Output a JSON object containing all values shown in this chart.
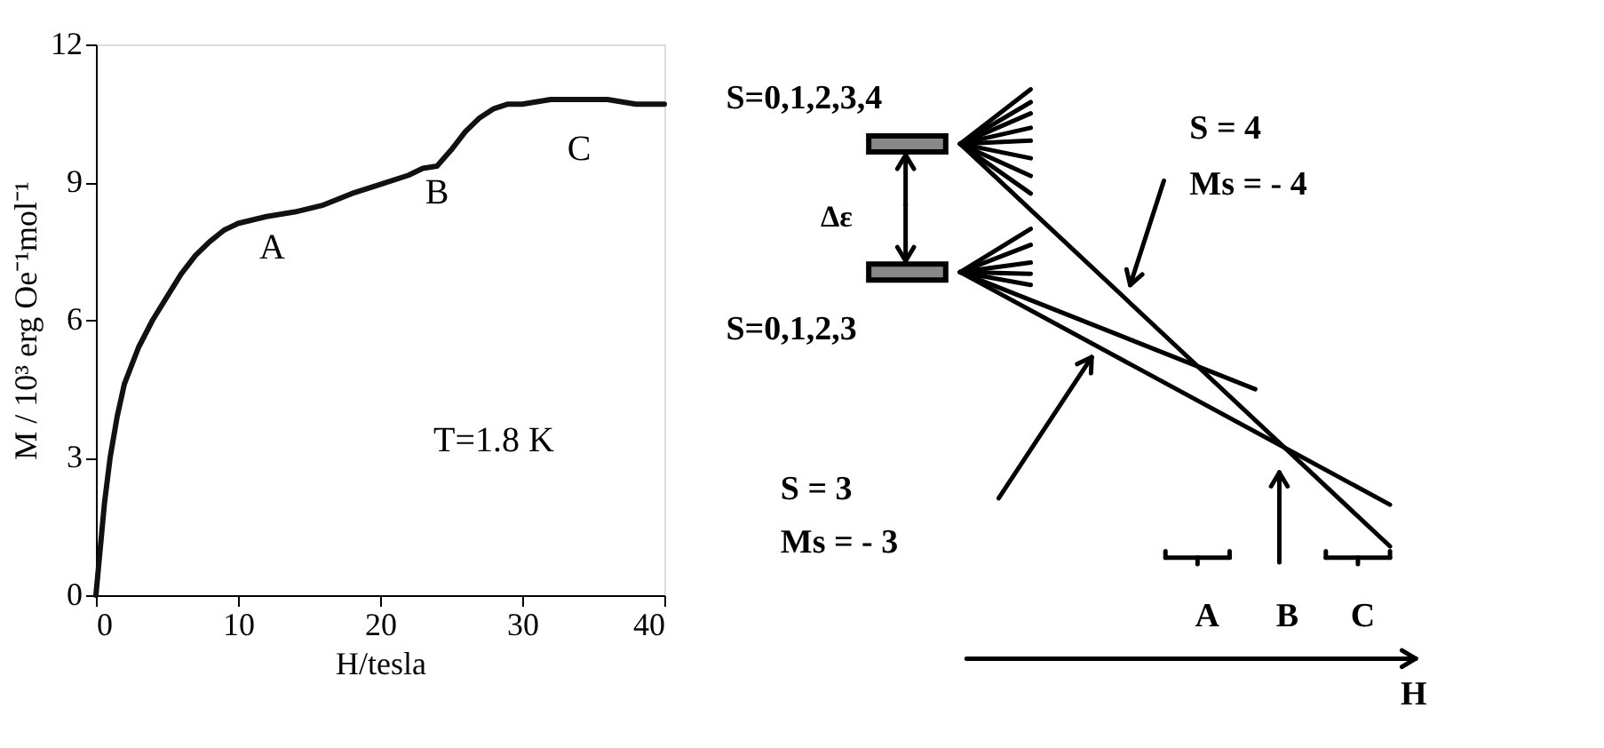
{
  "chart_data": [
    {
      "type": "line",
      "xlabel": "H/tesla",
      "ylabel": "M / 10³ erg Oe⁻¹mol⁻¹",
      "x": [
        0,
        0.3,
        0.6,
        1,
        1.5,
        2,
        3,
        4,
        5,
        6,
        7,
        8,
        9,
        10,
        12,
        14,
        16,
        18,
        20,
        22,
        23,
        24,
        25,
        26,
        27,
        28,
        29,
        30,
        32,
        34,
        36,
        38,
        40
      ],
      "series": [
        {
          "color": "#111111",
          "values": [
            0,
            1.0,
            2.0,
            3.0,
            3.9,
            4.6,
            5.4,
            6.0,
            6.5,
            7.0,
            7.4,
            7.7,
            7.95,
            8.1,
            8.25,
            8.35,
            8.5,
            8.75,
            8.95,
            9.15,
            9.3,
            9.35,
            9.7,
            10.1,
            10.4,
            10.6,
            10.7,
            10.7,
            10.8,
            10.8,
            10.8,
            10.7,
            10.7
          ]
        }
      ],
      "xlim": [
        0,
        40
      ],
      "ylim": [
        0,
        12
      ],
      "xticks": [
        0,
        10,
        20,
        30,
        40
      ],
      "yticks": [
        0,
        3,
        6,
        9,
        12
      ],
      "annotations": [
        "A",
        "B",
        "C",
        "T=1.8 K"
      ],
      "grid": false,
      "line_style": "solid",
      "marker": "none"
    },
    {
      "type": "other",
      "annotations": [
        "S=0,1,2,3,4",
        "Δε",
        "S=0,1,2,3",
        "S = 4",
        "Ms  =  - 4",
        "S = 3",
        "Ms  =  - 3",
        "A",
        "B",
        "C",
        "H"
      ]
    }
  ]
}
